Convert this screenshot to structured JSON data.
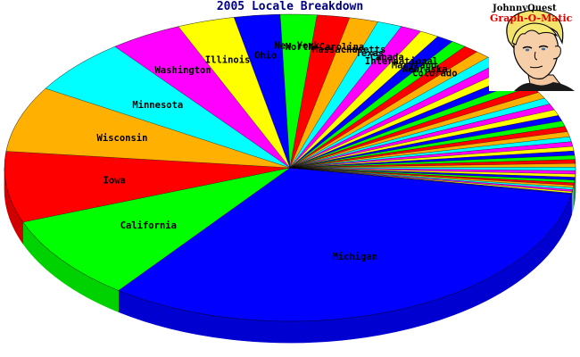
{
  "chart_data": {
    "type": "pie",
    "title": "2005 Locale Breakdown",
    "style": "3d",
    "legend": "none",
    "slices": [
      {
        "label": "Michigan",
        "value": 30.0,
        "color": "#0000ff"
      },
      {
        "label": "California",
        "value": 8.3,
        "color": "#00ff00"
      },
      {
        "label": "Iowa",
        "value": 6.9,
        "color": "#ff0000"
      },
      {
        "label": "Wisconsin",
        "value": 6.4,
        "color": "#ffb000"
      },
      {
        "label": "Minnesota",
        "value": 5.4,
        "color": "#00ffff"
      },
      {
        "label": "Washington",
        "value": 3.8,
        "color": "#ff00ff"
      },
      {
        "label": "Illinois",
        "value": 3.0,
        "color": "#ffff00"
      },
      {
        "label": "Ohio",
        "value": 2.4,
        "color": "#0000ff"
      },
      {
        "label": "New York",
        "value": 1.9,
        "color": "#00ff00"
      },
      {
        "label": "North Carolina",
        "value": 1.7,
        "color": "#ff0000"
      },
      {
        "label": "Massachusetts",
        "value": 1.5,
        "color": "#ffb000"
      },
      {
        "label": "Texas",
        "value": 1.3,
        "color": "#00ffff"
      },
      {
        "label": "Canada",
        "value": 1.1,
        "color": "#ff00ff"
      },
      {
        "label": "International",
        "value": 1.0,
        "color": "#ffff00"
      },
      {
        "label": "Maryland",
        "value": 0.9,
        "color": "#0000ff"
      },
      {
        "label": "Nebraska",
        "value": 0.8,
        "color": "#00ff00"
      },
      {
        "label": "Colorado",
        "value": 0.8,
        "color": "#ff0000"
      }
    ],
    "others": {
      "count": 33,
      "values": [
        0.78,
        0.76,
        0.74,
        0.72,
        0.7,
        0.68,
        0.66,
        0.64,
        0.62,
        0.6,
        0.58,
        0.56,
        0.54,
        0.52,
        0.5,
        0.48,
        0.46,
        0.44,
        0.42,
        0.4,
        0.38,
        0.36,
        0.34,
        0.32,
        0.3,
        0.28,
        0.26,
        0.24,
        0.22,
        0.2,
        0.18,
        0.16,
        0.12
      ],
      "palette": [
        "#ffb000",
        "#00ffff",
        "#ff00ff",
        "#ffff00",
        "#0000ff",
        "#00ff00",
        "#ff0000"
      ]
    }
  },
  "logo": {
    "line1": "JohnnyQuest",
    "line2": "Graph-O-Matic"
  }
}
